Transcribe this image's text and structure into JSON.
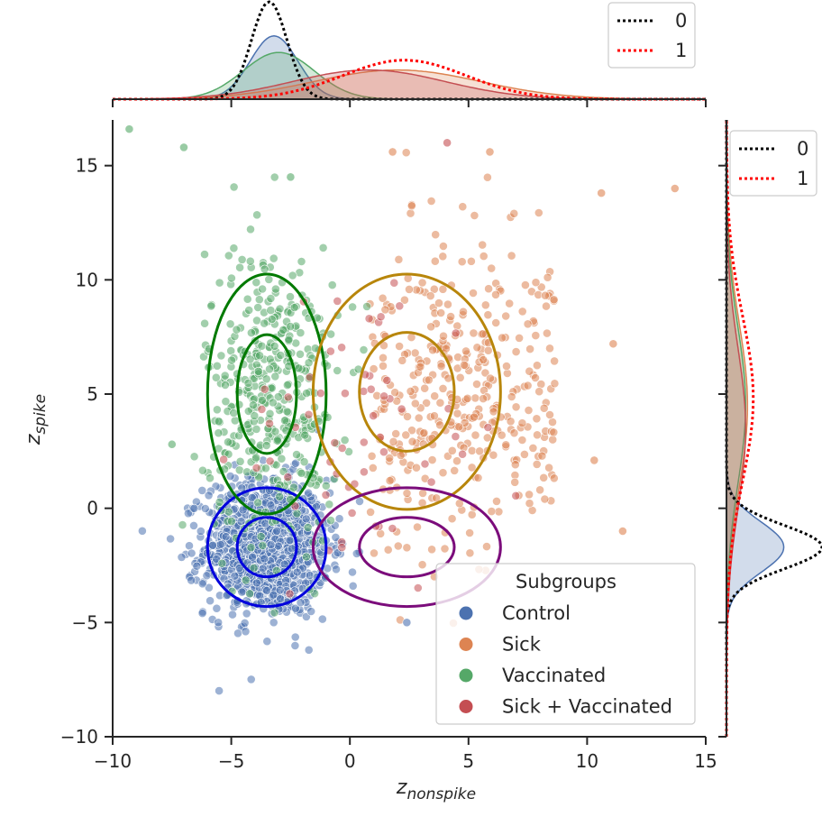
{
  "chart_data": {
    "type": "scatter",
    "xlabel": "z",
    "xlabel_sub": "nonspike",
    "ylabel": "z",
    "ylabel_sub": "spike",
    "xlim": [
      -10,
      15
    ],
    "ylim": [
      -10,
      17
    ],
    "xticks": [
      -10,
      -5,
      0,
      5,
      10,
      15
    ],
    "yticks": [
      -10,
      -5,
      0,
      5,
      10,
      15
    ],
    "xtick_labels": [
      "−10",
      "−5",
      "0",
      "5",
      "10",
      "15"
    ],
    "ytick_labels": [
      "−10",
      "−5",
      "0",
      "5",
      "10",
      "15"
    ],
    "legend": {
      "title": "Subgroups",
      "location": "lower-right",
      "entries": [
        {
          "label": "Control",
          "color": "#4c72b0"
        },
        {
          "label": "Sick",
          "color": "#dd8452"
        },
        {
          "label": "Vaccinated",
          "color": "#55a868"
        },
        {
          "label": "Sick + Vaccinated",
          "color": "#c44e52"
        }
      ]
    },
    "series": [
      {
        "name": "Control",
        "color": "#4c72b0",
        "n": 1100,
        "mean_x": -3.5,
        "mean_y": -1.7,
        "sd_x": 1.3,
        "sd_y": 1.5
      },
      {
        "name": "Sick",
        "color": "#dd8452",
        "n": 380,
        "mean_x": 2.4,
        "mean_y": 5.0,
        "sd_x": 3.0,
        "sd_y": 3.3
      },
      {
        "name": "Vaccinated",
        "color": "#55a868",
        "n": 420,
        "mean_x": -3.3,
        "mean_y": 5.0,
        "sd_x": 1.4,
        "sd_y": 3.3
      },
      {
        "name": "Sick + Vaccinated",
        "color": "#c44e52",
        "n": 60,
        "mean_x": 0.5,
        "mean_y": 3.5,
        "sd_x": 2.5,
        "sd_y": 3.5
      }
    ],
    "outliers": [
      {
        "series": "Vaccinated",
        "x": -9.3,
        "y": 16.6
      },
      {
        "series": "Vaccinated",
        "x": -7.0,
        "y": 15.8
      },
      {
        "series": "Vaccinated",
        "x": -2.5,
        "y": 14.5
      },
      {
        "series": "Sick",
        "x": 13.7,
        "y": 14.0
      },
      {
        "series": "Sick",
        "x": 10.6,
        "y": 13.8
      },
      {
        "series": "Sick",
        "x": 1.8,
        "y": 15.6
      },
      {
        "series": "Sick",
        "x": 5.9,
        "y": 15.6
      },
      {
        "series": "Sick + Vaccinated",
        "x": 4.1,
        "y": 16.0
      },
      {
        "series": "Sick",
        "x": 11.5,
        "y": -1.0
      },
      {
        "series": "Sick",
        "x": 10.3,
        "y": 2.1
      },
      {
        "series": "Sick",
        "x": 11.1,
        "y": 7.2
      },
      {
        "series": "Vaccinated",
        "x": -7.5,
        "y": 2.8
      },
      {
        "series": "Control",
        "x": 2.4,
        "y": -5.0
      }
    ],
    "ellipses": [
      {
        "name": "Control",
        "color": "#0000dd",
        "cx": -3.5,
        "cy": -1.7,
        "rx_inner": 1.25,
        "ry_inner": 1.3,
        "rx_outer": 2.5,
        "ry_outer": 2.6
      },
      {
        "name": "Vaccinated",
        "color": "#007a00",
        "cx": -3.5,
        "cy": 5.0,
        "rx_inner": 1.25,
        "ry_inner": 2.6,
        "rx_outer": 2.5,
        "ry_outer": 5.25
      },
      {
        "name": "Sick",
        "color": "#b8860b",
        "cx": 2.4,
        "cy": 5.1,
        "rx_inner": 2.0,
        "ry_inner": 2.6,
        "rx_outer": 3.95,
        "ry_outer": 5.15
      },
      {
        "name": "Sick + Vaccinated",
        "color": "#7b0c7b",
        "cx": 2.4,
        "cy": -1.7,
        "rx_inner": 2.0,
        "ry_inner": 1.3,
        "rx_outer": 3.95,
        "ry_outer": 2.6
      }
    ],
    "marginal_x": {
      "legend_entries": [
        {
          "label": "0",
          "style": "dotted",
          "color": "#000000"
        },
        {
          "label": "1",
          "style": "dotted",
          "color": "#ff0000"
        }
      ],
      "kde": [
        {
          "name": "Control",
          "color": "#4c72b0",
          "mean": -3.2,
          "sd": 1.0,
          "height": 0.65
        },
        {
          "name": "Vaccinated",
          "color": "#55a868",
          "mean": -3.0,
          "sd": 1.5,
          "height": 0.48
        },
        {
          "name": "Sick",
          "color": "#dd8452",
          "mean": 2.0,
          "sd": 3.5,
          "height": 0.3
        },
        {
          "name": "Sick + Vaccinated",
          "color": "#c44e52",
          "mean": 0.8,
          "sd": 3.2,
          "height": 0.3
        }
      ],
      "dotted": [
        {
          "label": "0",
          "color": "#000000",
          "mean": -3.4,
          "sd": 0.75,
          "height": 1.0
        },
        {
          "label": "1",
          "color": "#ff0000",
          "mean": 2.3,
          "sd": 2.6,
          "height": 0.4
        }
      ]
    },
    "marginal_y": {
      "legend_entries": [
        {
          "label": "0",
          "style": "dotted",
          "color": "#000000"
        },
        {
          "label": "1",
          "style": "dotted",
          "color": "#ff0000"
        }
      ],
      "kde": [
        {
          "name": "Control",
          "color": "#4c72b0",
          "mean": -1.7,
          "sd": 1.1,
          "height": 0.6
        },
        {
          "name": "Sick",
          "color": "#dd8452",
          "mean": 4.5,
          "sd": 3.6,
          "height": 0.22
        },
        {
          "name": "Vaccinated",
          "color": "#55a868",
          "mean": 4.5,
          "sd": 3.4,
          "height": 0.2
        },
        {
          "name": "Sick + Vaccinated",
          "color": "#c44e52",
          "mean": 3.5,
          "sd": 3.5,
          "height": 0.2
        }
      ],
      "dotted": [
        {
          "label": "0",
          "color": "#000000",
          "mean": -1.7,
          "sd": 0.95,
          "height": 1.0
        },
        {
          "label": "1",
          "color": "#ff0000",
          "mean": 4.8,
          "sd": 3.6,
          "height": 0.28
        }
      ]
    }
  }
}
